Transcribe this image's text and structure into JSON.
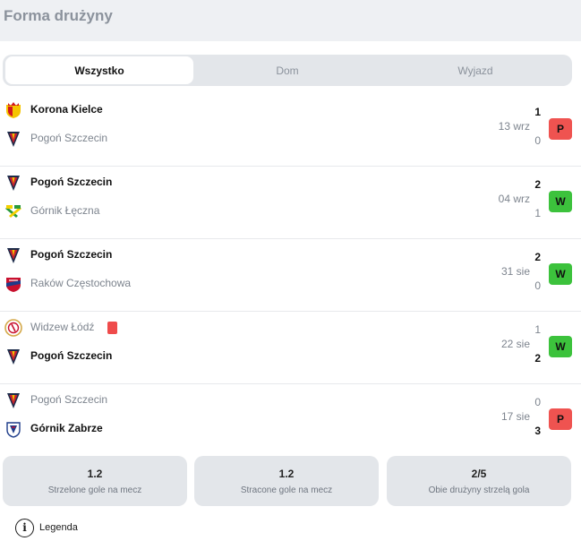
{
  "header": {
    "title": "Forma drużyny"
  },
  "tabs": [
    {
      "label": "Wszystko",
      "active": true
    },
    {
      "label": "Dom",
      "active": false
    },
    {
      "label": "Wyjazd",
      "active": false
    }
  ],
  "matches": [
    {
      "home": {
        "name": "Korona Kielce",
        "score": "1",
        "crest": "korona-kielce-crest",
        "winner": true
      },
      "away": {
        "name": "Pogoń Szczecin",
        "score": "0",
        "crest": "pogon-szczecin-crest",
        "winner": false
      },
      "date": "13 wrz",
      "result": "P"
    },
    {
      "home": {
        "name": "Pogoń Szczecin",
        "score": "2",
        "crest": "pogon-szczecin-crest",
        "winner": true
      },
      "away": {
        "name": "Górnik Łęczna",
        "score": "1",
        "crest": "gornik-leczna-crest",
        "winner": false
      },
      "date": "04 wrz",
      "result": "W"
    },
    {
      "home": {
        "name": "Pogoń Szczecin",
        "score": "2",
        "crest": "pogon-szczecin-crest",
        "winner": true
      },
      "away": {
        "name": "Raków Częstochowa",
        "score": "0",
        "crest": "rakow-czestochowa-crest",
        "winner": false
      },
      "date": "31 sie",
      "result": "W"
    },
    {
      "home": {
        "name": "Widzew Łódź",
        "score": "1",
        "crest": "widzew-lodz-crest",
        "winner": false,
        "red_card": true
      },
      "away": {
        "name": "Pogoń Szczecin",
        "score": "2",
        "crest": "pogon-szczecin-crest",
        "winner": true
      },
      "date": "22 sie",
      "result": "W"
    },
    {
      "home": {
        "name": "Pogoń Szczecin",
        "score": "0",
        "crest": "pogon-szczecin-crest",
        "winner": false
      },
      "away": {
        "name": "Górnik Zabrze",
        "score": "3",
        "crest": "gornik-zabrze-crest",
        "winner": true
      },
      "date": "17 sie",
      "result": "P"
    }
  ],
  "colors": {
    "loss": "#ef5350",
    "win": "#3cc23c"
  },
  "stats": [
    {
      "value": "1.2",
      "label": "Strzelone gole na mecz"
    },
    {
      "value": "1.2",
      "label": "Stracone gole na mecz"
    },
    {
      "value": "2/5",
      "label": "Obie drużyny strzelą gola"
    }
  ],
  "legend": {
    "icon": "info-icon",
    "icon_glyph": "i",
    "label": "Legenda"
  }
}
